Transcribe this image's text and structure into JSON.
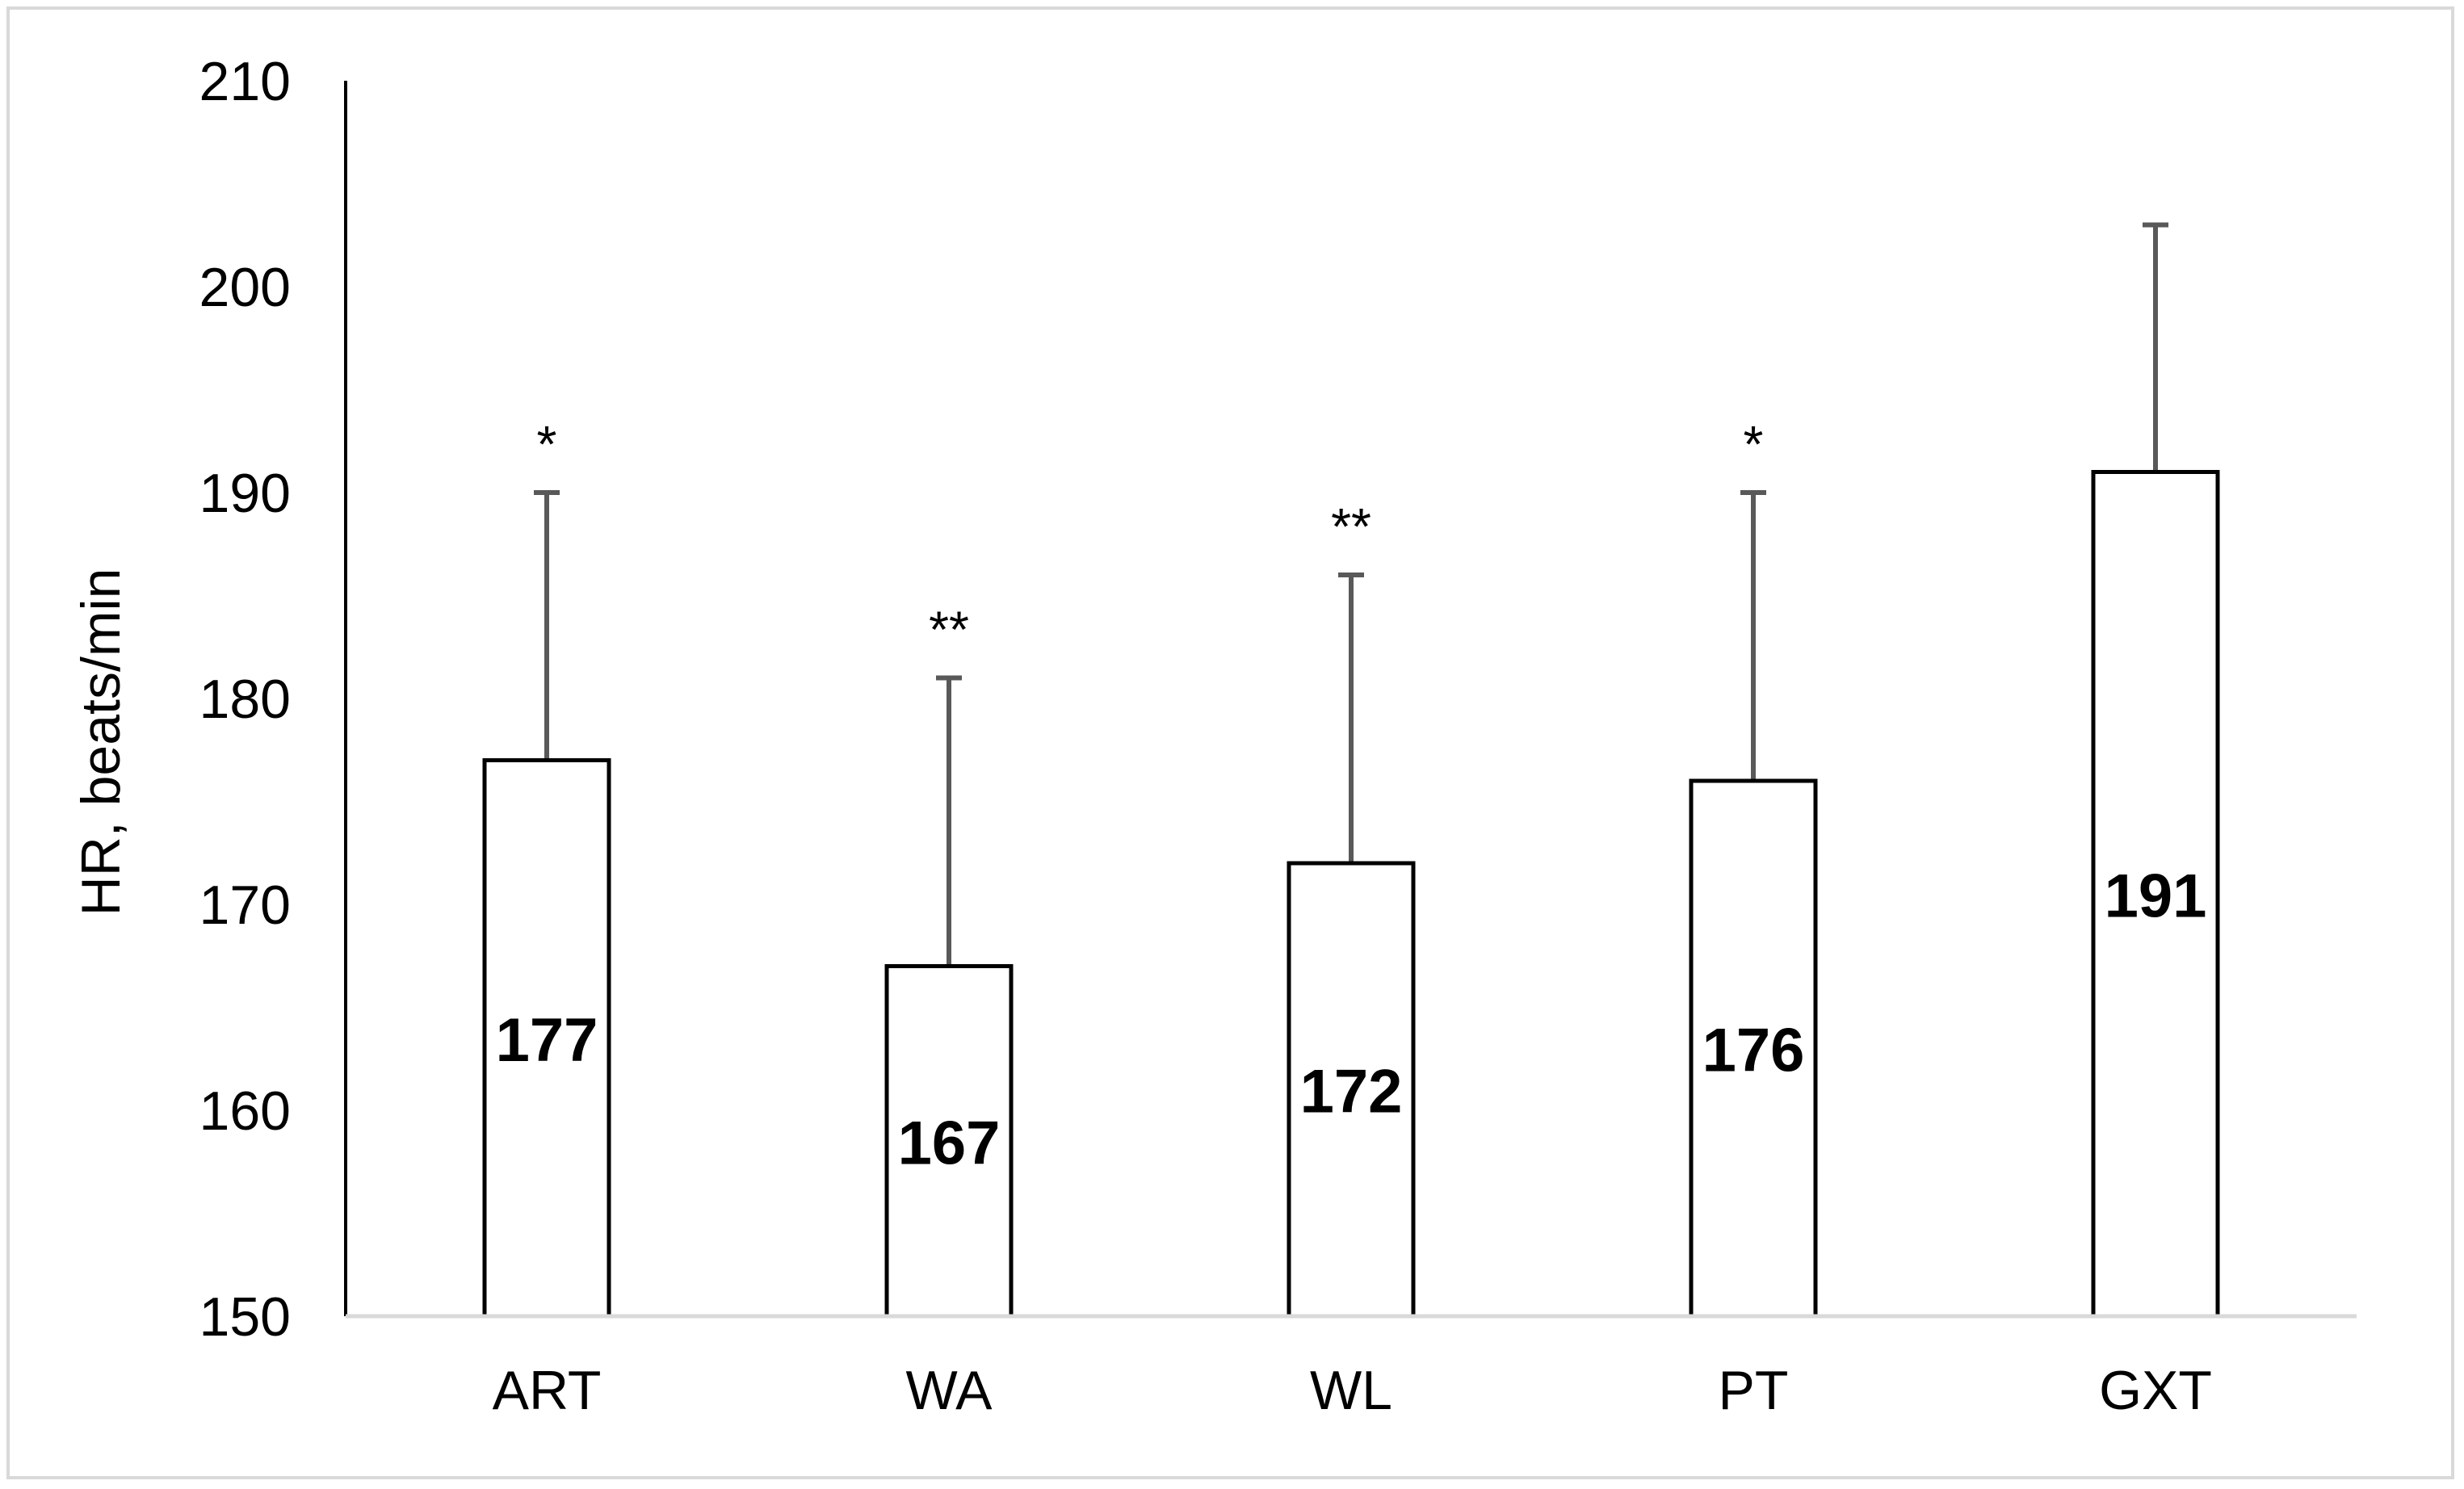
{
  "chart_data": {
    "type": "bar",
    "title": "",
    "xlabel": "",
    "ylabel": "HR, beats/min",
    "ylim": [
      150,
      210
    ],
    "yticks": [
      150,
      160,
      170,
      180,
      190,
      200,
      210
    ],
    "categories": [
      "ART",
      "WA",
      "WL",
      "PT",
      "GXT"
    ],
    "values": [
      177,
      167,
      172,
      176,
      191
    ],
    "value_labels": [
      "177",
      "167",
      "172",
      "176",
      "191"
    ],
    "error_upper": [
      190,
      181,
      186,
      190,
      203
    ],
    "significance": [
      "*",
      "**",
      "**",
      "*",
      ""
    ],
    "bar_fill": "#ffffff",
    "bar_stroke": "#000000",
    "error_bar_color": "#595959",
    "axis_color": "#d9d9d9",
    "grid": false,
    "legend": false
  }
}
